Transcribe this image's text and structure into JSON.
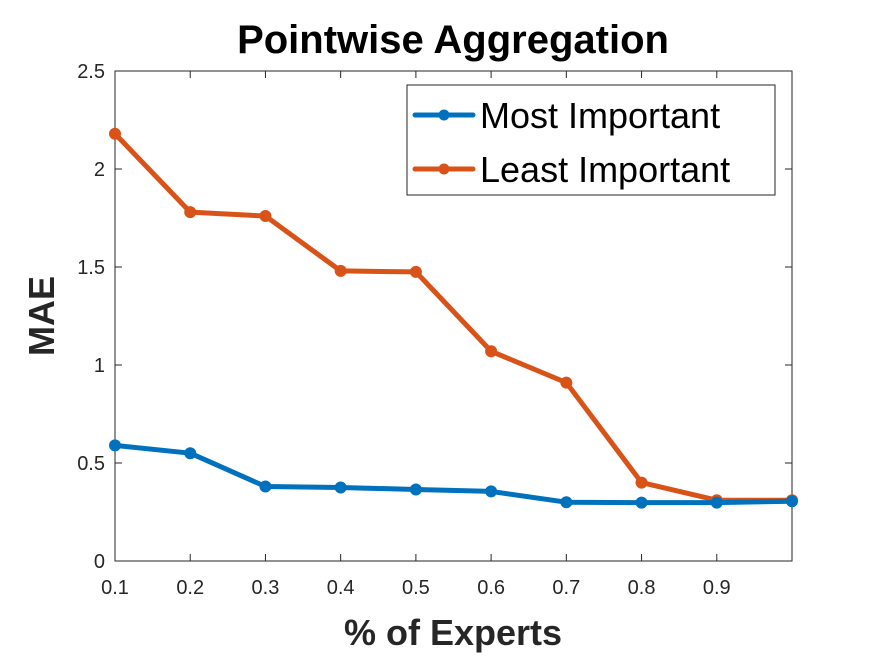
{
  "chart_data": {
    "type": "line",
    "title": "Pointwise Aggregation",
    "xlabel": "% of Experts",
    "ylabel": "MAE",
    "xlim": [
      0.1,
      1.0
    ],
    "ylim": [
      0,
      2.5
    ],
    "xticks": [
      0.1,
      0.2,
      0.3,
      0.4,
      0.5,
      0.6,
      0.7,
      0.8,
      0.9
    ],
    "xtick_labels": [
      "0.1",
      "0.2",
      "0.3",
      "0.4",
      "0.5",
      "0.6",
      "0.7",
      "0.8",
      "0.9"
    ],
    "yticks": [
      0,
      0.5,
      1,
      1.5,
      2,
      2.5
    ],
    "ytick_labels": [
      "0",
      "0.5",
      "1",
      "1.5",
      "2",
      "2.5"
    ],
    "grid": false,
    "legend_position": "top-right",
    "x": [
      0.1,
      0.2,
      0.3,
      0.4,
      0.5,
      0.6,
      0.7,
      0.8,
      0.9,
      1.0
    ],
    "series": [
      {
        "name": "Most Important",
        "color": "#0072BD",
        "values": [
          0.59,
          0.55,
          0.38,
          0.375,
          0.365,
          0.355,
          0.3,
          0.298,
          0.298,
          0.305
        ]
      },
      {
        "name": "Least Important",
        "color": "#D95319",
        "values": [
          2.18,
          1.78,
          1.76,
          1.48,
          1.475,
          1.07,
          0.91,
          0.4,
          0.31,
          0.31
        ]
      }
    ]
  }
}
